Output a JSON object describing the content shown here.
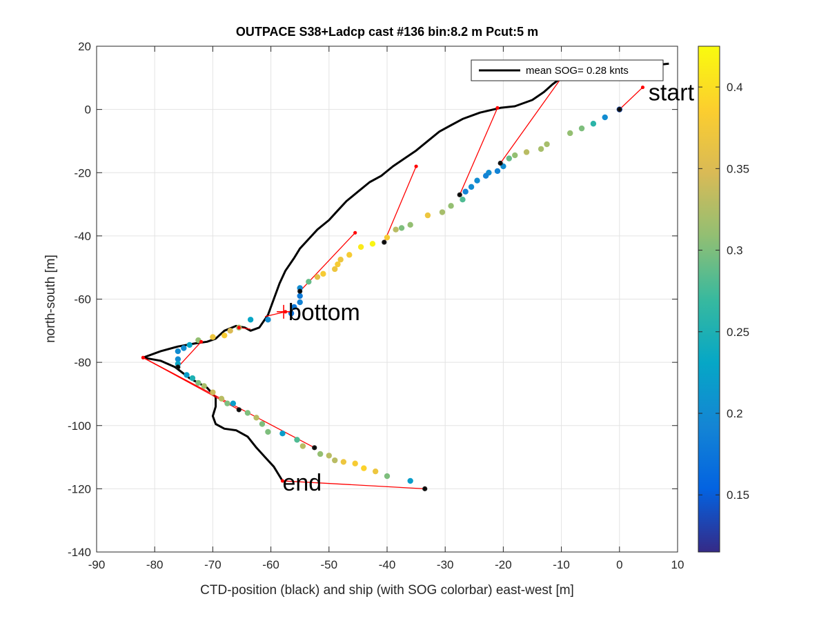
{
  "chart_data": {
    "type": "scatter",
    "title": "OUTPACE S38+Ladcp cast #136 bin:8.2 m  Pcut:5 m",
    "xlabel": "CTD-position (black) and ship (with SOG colorbar) east-west [m]",
    "ylabel": "north-south [m]",
    "xlim": [
      -90,
      10
    ],
    "ylim": [
      -140,
      20
    ],
    "xticks": [
      "-90",
      "-80",
      "-70",
      "-60",
      "-50",
      "-40",
      "-30",
      "-20",
      "-10",
      "0",
      "10"
    ],
    "yticks": [
      "20",
      "0",
      "-20",
      "-40",
      "-60",
      "-80",
      "-100",
      "-120",
      "-140"
    ],
    "grid": true,
    "legend": {
      "label": "mean SOG=  0.28 knts",
      "placement": "top-right"
    },
    "annotations": [
      {
        "text": "start",
        "x": 5,
        "y": 5.5
      },
      {
        "text": "bottom",
        "x": -57,
        "y": -64
      },
      {
        "text": "end",
        "x": -58,
        "y": -118
      }
    ],
    "colorbar": {
      "range": [
        0.115,
        0.425
      ],
      "ticks": [
        "0.4",
        "0.35",
        "0.3",
        "0.25",
        "0.2",
        "0.15"
      ],
      "colormap": [
        "#352a87",
        "#0363e1",
        "#1485d4",
        "#06a7c6",
        "#38b99e",
        "#92bf73",
        "#d9ba56",
        "#fcce2e",
        "#f9fb0e"
      ]
    },
    "ctd_track": [
      [
        8.5,
        14.5
      ],
      [
        6,
        14
      ],
      [
        2,
        13
      ],
      [
        -3,
        12.5
      ],
      [
        -8,
        12
      ],
      [
        -10,
        10
      ],
      [
        -11.5,
        8
      ],
      [
        -13,
        5.5
      ],
      [
        -15,
        3
      ],
      [
        -18,
        1
      ],
      [
        -20.5,
        0.5
      ],
      [
        -24,
        -1
      ],
      [
        -27,
        -3
      ],
      [
        -29,
        -5
      ],
      [
        -31,
        -7
      ],
      [
        -33,
        -10
      ],
      [
        -35,
        -13
      ],
      [
        -37,
        -15.5
      ],
      [
        -39,
        -18
      ],
      [
        -41,
        -21
      ],
      [
        -43,
        -23
      ],
      [
        -45,
        -26
      ],
      [
        -47,
        -29
      ],
      [
        -48.5,
        -32
      ],
      [
        -50,
        -35
      ],
      [
        -52,
        -38
      ],
      [
        -53.5,
        -41
      ],
      [
        -55,
        -44
      ],
      [
        -56,
        -47
      ],
      [
        -57.5,
        -51
      ],
      [
        -58.5,
        -55
      ],
      [
        -59.5,
        -60
      ],
      [
        -60.5,
        -65
      ],
      [
        -62,
        -69
      ],
      [
        -63.5,
        -70
      ],
      [
        -64.5,
        -69
      ],
      [
        -66,
        -68.5
      ],
      [
        -68,
        -70
      ],
      [
        -69.5,
        -72.5
      ],
      [
        -71,
        -73.5
      ],
      [
        -73,
        -74
      ],
      [
        -76,
        -75
      ],
      [
        -79,
        -76.5
      ],
      [
        -82,
        -78.5
      ],
      [
        -79,
        -79.5
      ],
      [
        -76.5,
        -81.5
      ],
      [
        -74,
        -85
      ],
      [
        -71,
        -88
      ],
      [
        -69.5,
        -91
      ],
      [
        -69.5,
        -94
      ],
      [
        -70,
        -97
      ],
      [
        -69.5,
        -99.5
      ],
      [
        -68,
        -101
      ],
      [
        -66,
        -101.5
      ],
      [
        -64,
        -103.5
      ],
      [
        -62.5,
        -107
      ],
      [
        -61,
        -110
      ],
      [
        -59.5,
        -113
      ],
      [
        -58,
        -117.5
      ]
    ],
    "red_segments": [
      [
        [
          4,
          7
        ],
        [
          0,
          0
        ]
      ],
      [
        [
          -10,
          10
        ],
        [
          -20.5,
          -17
        ]
      ],
      [
        [
          -21,
          0.5
        ],
        [
          -27.5,
          -27
        ]
      ],
      [
        [
          -35,
          -18
        ],
        [
          -40.5,
          -42
        ]
      ],
      [
        [
          -45.5,
          -39
        ],
        [
          -55,
          -57.5
        ]
      ],
      [
        [
          -57.5,
          -64
        ],
        [
          -61,
          -65.5
        ]
      ],
      [
        [
          -65.5,
          -69
        ],
        [
          -63.5,
          -69.5
        ]
      ],
      [
        [
          -72,
          -73.5
        ],
        [
          -76,
          -81.5
        ]
      ],
      [
        [
          -82,
          -78.5
        ],
        [
          -65.5,
          -95
        ]
      ],
      [
        [
          -82,
          -78.5
        ],
        [
          -52.5,
          -107
        ]
      ],
      [
        [
          -58,
          -117.5
        ],
        [
          -33.5,
          -120
        ]
      ]
    ],
    "red_markers": [
      [
        4,
        7
      ],
      [
        -10,
        10
      ],
      [
        -21,
        0.5
      ],
      [
        -35,
        -18
      ],
      [
        -45.5,
        -39
      ],
      [
        -57.5,
        -64
      ],
      [
        -65.5,
        -69
      ],
      [
        -72,
        -73.5
      ],
      [
        -82,
        -78.5
      ],
      [
        -58,
        -117.5
      ]
    ],
    "black_markers": [
      [
        0,
        0
      ],
      [
        -20.5,
        -17
      ],
      [
        -27.5,
        -27
      ],
      [
        -40.5,
        -42
      ],
      [
        -55,
        -57.5
      ],
      [
        -76,
        -81.5
      ],
      [
        -65.5,
        -95
      ],
      [
        -52.5,
        -107
      ],
      [
        -33.5,
        -120
      ]
    ],
    "ship_points": [
      [
        0,
        0,
        0.14
      ],
      [
        -2.5,
        -2.5,
        0.2
      ],
      [
        -4.5,
        -4.5,
        0.26
      ],
      [
        -6.5,
        -6,
        0.3
      ],
      [
        -8.5,
        -7.5,
        0.31
      ],
      [
        -12.5,
        -11,
        0.32
      ],
      [
        -13.5,
        -12.5,
        0.32
      ],
      [
        -16,
        -13.5,
        0.33
      ],
      [
        -18,
        -14.5,
        0.31
      ],
      [
        -19,
        -15.5,
        0.29
      ],
      [
        -20,
        -18,
        0.2
      ],
      [
        -21,
        -19.5,
        0.19
      ],
      [
        -22.5,
        -20,
        0.2
      ],
      [
        -23,
        -21,
        0.19
      ],
      [
        -24.5,
        -22.5,
        0.2
      ],
      [
        -25.5,
        -24.5,
        0.2
      ],
      [
        -26.5,
        -26,
        0.19
      ],
      [
        -27,
        -28.5,
        0.28
      ],
      [
        -29,
        -30.5,
        0.31
      ],
      [
        -30.5,
        -32.5,
        0.32
      ],
      [
        -33,
        -33.5,
        0.37
      ],
      [
        -36,
        -36.5,
        0.31
      ],
      [
        -37.5,
        -37.5,
        0.3
      ],
      [
        -38.5,
        -38,
        0.33
      ],
      [
        -40,
        -40.5,
        0.38
      ],
      [
        -42.5,
        -42.5,
        0.42
      ],
      [
        -44.5,
        -43.5,
        0.41
      ],
      [
        -46.5,
        -46,
        0.38
      ],
      [
        -48,
        -47.5,
        0.37
      ],
      [
        -48.5,
        -49,
        0.38
      ],
      [
        -49,
        -50.5,
        0.37
      ],
      [
        -51,
        -52,
        0.38
      ],
      [
        -52,
        -53,
        0.36
      ],
      [
        -53.5,
        -54.5,
        0.29
      ],
      [
        -55,
        -56.5,
        0.2
      ],
      [
        -55,
        -59,
        0.18
      ],
      [
        -55,
        -61,
        0.19
      ],
      [
        -56,
        -62.5,
        0.18
      ],
      [
        -56.5,
        -64.5,
        0.17
      ],
      [
        -60.5,
        -66.5,
        0.2
      ],
      [
        -63.5,
        -66.5,
        0.23
      ],
      [
        -65.5,
        -69,
        0.32
      ],
      [
        -67,
        -70,
        0.35
      ],
      [
        -68,
        -71.5,
        0.38
      ],
      [
        -70,
        -72,
        0.37
      ],
      [
        -72.5,
        -73,
        0.31
      ],
      [
        -74,
        -74.5,
        0.23
      ],
      [
        -75,
        -75.5,
        0.2
      ],
      [
        -76,
        -76.5,
        0.2
      ],
      [
        -76,
        -79,
        0.2
      ],
      [
        -76,
        -80.5,
        0.23
      ],
      [
        -74.5,
        -84,
        0.22
      ],
      [
        -73.5,
        -85,
        0.25
      ],
      [
        -72.5,
        -86.5,
        0.3
      ],
      [
        -71.5,
        -87.5,
        0.32
      ],
      [
        -70,
        -89.5,
        0.34
      ],
      [
        -68.5,
        -91.5,
        0.33
      ],
      [
        -67.5,
        -93,
        0.3
      ],
      [
        -66.5,
        -93,
        0.22
      ],
      [
        -64,
        -96,
        0.3
      ],
      [
        -62.5,
        -97.5,
        0.33
      ],
      [
        -61.5,
        -99.5,
        0.3
      ],
      [
        -60.5,
        -102,
        0.3
      ],
      [
        -58,
        -102.5,
        0.22
      ],
      [
        -55.5,
        -104.5,
        0.28
      ],
      [
        -54.5,
        -106.5,
        0.33
      ],
      [
        -51.5,
        -109,
        0.31
      ],
      [
        -50,
        -109.5,
        0.33
      ],
      [
        -49,
        -111,
        0.33
      ],
      [
        -47.5,
        -111.5,
        0.37
      ],
      [
        -45.5,
        -112,
        0.38
      ],
      [
        -44,
        -113.5,
        0.39
      ],
      [
        -42,
        -114.5,
        0.37
      ],
      [
        -40,
        -116,
        0.3
      ],
      [
        -36,
        -117.5,
        0.22
      ]
    ]
  }
}
